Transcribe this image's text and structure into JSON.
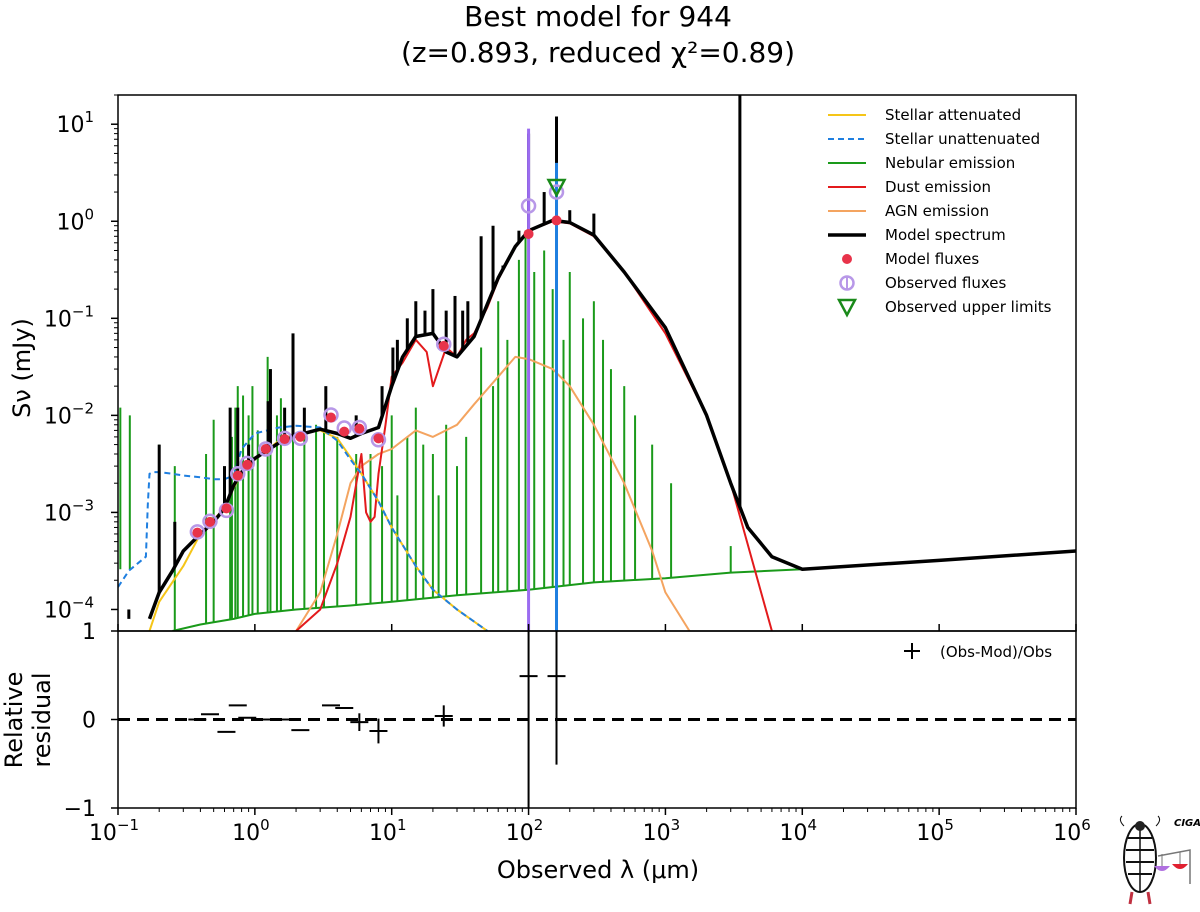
{
  "chart_data": {
    "type": "line",
    "title_line1": "Best model for 944",
    "title_line2": "(z=0.893, reduced χ²=0.89)",
    "xlabel": "Observed λ (μm)",
    "ylabel": "Sν (mJy)",
    "residual_ylabel_line1": "Relative",
    "residual_ylabel_line2": "residual",
    "xscale": "log",
    "yscale": "log",
    "xlim": [
      0.1,
      1000000
    ],
    "ylim": [
      6e-05,
      20
    ],
    "residual_ylim": [
      -1,
      1
    ],
    "x_ticks": [
      {
        "value": 0.1,
        "base": "10",
        "exp": "−1"
      },
      {
        "value": 1,
        "base": "10",
        "exp": "0"
      },
      {
        "value": 10,
        "base": "10",
        "exp": "1"
      },
      {
        "value": 100,
        "base": "10",
        "exp": "2"
      },
      {
        "value": 1000,
        "base": "10",
        "exp": "3"
      },
      {
        "value": 10000,
        "base": "10",
        "exp": "4"
      },
      {
        "value": 100000,
        "base": "10",
        "exp": "5"
      },
      {
        "value": 1000000,
        "base": "10",
        "exp": "6"
      }
    ],
    "y_ticks": [
      {
        "value": 0.0001,
        "base": "10",
        "exp": "−4"
      },
      {
        "value": 0.001,
        "base": "10",
        "exp": "−3"
      },
      {
        "value": 0.01,
        "base": "10",
        "exp": "−2"
      },
      {
        "value": 0.1,
        "base": "10",
        "exp": "−1"
      },
      {
        "value": 1,
        "base": "10",
        "exp": "0"
      },
      {
        "value": 10,
        "base": "10",
        "exp": "1"
      }
    ],
    "residual_ticks": [
      {
        "value": 1,
        "label": "1"
      },
      {
        "value": 0,
        "label": "0"
      },
      {
        "value": -1,
        "label": "−1"
      }
    ],
    "legend_position": "top-right",
    "legend": [
      {
        "key": "stellar_attenuated",
        "label": "Stellar attenuated",
        "color": "#f5c518",
        "style": "solid"
      },
      {
        "key": "stellar_unattenuated",
        "label": "Stellar unattenuated",
        "color": "#1f7fe0",
        "style": "dashed"
      },
      {
        "key": "nebular",
        "label": "Nebular emission",
        "color": "#1a9a1a",
        "style": "solid"
      },
      {
        "key": "dust",
        "label": "Dust emission",
        "color": "#e31a1c",
        "style": "solid"
      },
      {
        "key": "agn",
        "label": "AGN emission",
        "color": "#f4a460",
        "style": "solid"
      },
      {
        "key": "model",
        "label": "Model spectrum",
        "color": "#000000",
        "style": "solid"
      },
      {
        "key": "model_fluxes",
        "label": "Model fluxes",
        "color": "#e8334a",
        "style": "dot"
      },
      {
        "key": "obs_fluxes",
        "label": "Observed fluxes",
        "color": "#b898e8",
        "style": "circle"
      },
      {
        "key": "upper_limits",
        "label": "Observed upper limits",
        "color": "#1a8a1a",
        "style": "triangle"
      }
    ],
    "residual_legend": "(Obs-Mod)/Obs",
    "series": [
      {
        "name": "Stellar unattenuated",
        "key": "stellar_unattenuated",
        "x": [
          0.1,
          0.12,
          0.14,
          0.16,
          0.165,
          0.17,
          0.18,
          0.2,
          0.25,
          0.3,
          0.4,
          0.5,
          0.6,
          0.7,
          0.8,
          1.0,
          1.5,
          2.0,
          3.0,
          4.0,
          5.0,
          6.0,
          8.0,
          10,
          15,
          20,
          30,
          40,
          50
        ],
        "y": [
          0.00017,
          0.00025,
          0.0003,
          0.00035,
          0.0012,
          0.0025,
          0.0026,
          0.0026,
          0.0025,
          0.0024,
          0.0023,
          0.0022,
          0.0022,
          0.0024,
          0.0045,
          0.0065,
          0.0075,
          0.0078,
          0.0075,
          0.0055,
          0.0035,
          0.0025,
          0.0013,
          0.0007,
          0.00028,
          0.00016,
          0.0001,
          7.5e-05,
          6e-05
        ]
      },
      {
        "name": "Stellar attenuated",
        "key": "stellar_attenuated",
        "x": [
          0.17,
          0.2,
          0.3,
          0.4,
          0.5,
          0.6,
          0.7,
          0.8,
          1.0,
          1.5,
          2.0,
          3.0,
          4.0,
          5.0,
          6.0,
          8.0,
          10,
          15,
          20,
          30,
          40,
          50
        ],
        "y": [
          6e-05,
          0.00012,
          0.00028,
          0.0006,
          0.00085,
          0.0011,
          0.0018,
          0.0025,
          0.0035,
          0.0055,
          0.0065,
          0.007,
          0.0058,
          0.0037,
          0.0025,
          0.0013,
          0.0007,
          0.00028,
          0.00016,
          0.0001,
          7.5e-05,
          6e-05
        ]
      },
      {
        "name": "Nebular emission",
        "key": "nebular",
        "x": [
          0.25,
          0.4,
          0.7,
          1,
          2,
          5,
          10,
          30,
          100,
          300,
          1000,
          3000,
          10000
        ],
        "y": [
          6e-05,
          7e-05,
          8e-05,
          9e-05,
          0.0001,
          0.00011,
          0.00012,
          0.00014,
          0.00016,
          0.00019,
          0.00021,
          0.00024,
          0.00026
        ]
      },
      {
        "name": "Dust emission",
        "key": "dust",
        "x": [
          2,
          3,
          4,
          5,
          6,
          6.5,
          7,
          7.5,
          8,
          9,
          10,
          12,
          15,
          18,
          20,
          25,
          30,
          35,
          40,
          50,
          60,
          80,
          100,
          150,
          200,
          300,
          500,
          1000,
          2000,
          3000,
          5000,
          6000
        ],
        "y": [
          6e-05,
          0.0001,
          0.0003,
          0.0009,
          0.004,
          0.001,
          0.0008,
          0.0009,
          0.0025,
          0.008,
          0.025,
          0.035,
          0.06,
          0.045,
          0.02,
          0.05,
          0.04,
          0.06,
          0.07,
          0.13,
          0.25,
          0.55,
          0.8,
          1.0,
          0.95,
          0.7,
          0.3,
          0.07,
          0.01,
          0.002,
          0.00015,
          6e-05
        ]
      },
      {
        "name": "AGN emission",
        "key": "agn",
        "x": [
          2,
          3,
          4,
          5,
          6,
          8,
          10,
          15,
          20,
          30,
          40,
          60,
          80,
          100,
          150,
          200,
          300,
          500,
          800,
          1000,
          1500
        ],
        "y": [
          6e-05,
          0.00015,
          0.0006,
          0.002,
          0.003,
          0.004,
          0.0045,
          0.007,
          0.006,
          0.008,
          0.013,
          0.025,
          0.04,
          0.038,
          0.03,
          0.02,
          0.008,
          0.002,
          0.0004,
          0.00015,
          6e-05
        ]
      },
      {
        "name": "Model spectrum",
        "key": "model",
        "x": [
          0.17,
          0.2,
          0.25,
          0.3,
          0.4,
          0.5,
          0.6,
          0.7,
          0.8,
          1.0,
          1.5,
          2.0,
          3.0,
          4.0,
          5.0,
          6.0,
          8.0,
          10,
          12,
          15,
          20,
          25,
          30,
          40,
          50,
          60,
          80,
          100,
          150,
          200,
          300,
          500,
          1000,
          2000,
          3000,
          4000,
          6000,
          10000,
          100000,
          1000000
        ],
        "y": [
          8e-05,
          0.00015,
          0.00025,
          0.0004,
          0.0006,
          0.0008,
          0.0011,
          0.0019,
          0.0026,
          0.0036,
          0.0052,
          0.0062,
          0.0072,
          0.0065,
          0.0058,
          0.0065,
          0.0075,
          0.02,
          0.04,
          0.065,
          0.07,
          0.045,
          0.04,
          0.065,
          0.14,
          0.26,
          0.55,
          0.8,
          1.02,
          0.97,
          0.72,
          0.3,
          0.08,
          0.01,
          0.002,
          0.0007,
          0.00035,
          0.00026,
          0.00032,
          0.0004
        ]
      },
      {
        "name": "Model fluxes",
        "key": "model_fluxes",
        "x": [
          0.38,
          0.47,
          0.62,
          0.75,
          0.88,
          1.2,
          1.65,
          2.15,
          3.6,
          4.5,
          5.8,
          8.0,
          24,
          100,
          160
        ],
        "y": [
          0.00062,
          0.0008,
          0.0011,
          0.0024,
          0.0031,
          0.0045,
          0.0057,
          0.006,
          0.0095,
          0.0068,
          0.0073,
          0.0058,
          0.052,
          0.74,
          1.02
        ]
      },
      {
        "name": "Observed fluxes",
        "key": "obs_fluxes",
        "x": [
          0.38,
          0.47,
          0.62,
          0.75,
          0.88,
          1.2,
          1.65,
          2.15,
          3.6,
          4.5,
          5.8,
          8.0,
          24,
          100,
          160
        ],
        "y": [
          0.00063,
          0.00081,
          0.00105,
          0.0025,
          0.0032,
          0.0045,
          0.0058,
          0.0058,
          0.0101,
          0.0074,
          0.0075,
          0.0056,
          0.054,
          1.44,
          2.0
        ]
      },
      {
        "name": "Observed upper limits",
        "key": "upper_limits",
        "x": [
          160
        ],
        "y": [
          2.2
        ]
      }
    ],
    "residuals": {
      "x": [
        0.38,
        0.47,
        0.62,
        0.75,
        0.88,
        1.2,
        1.65,
        2.15,
        3.6,
        4.5,
        5.8,
        8.0,
        24,
        100,
        160
      ],
      "y": [
        0.0,
        0.06,
        -0.14,
        0.16,
        0.02,
        0.0,
        0.0,
        -0.12,
        0.16,
        0.13,
        -0.03,
        -0.13,
        0.04,
        0.49,
        0.49
      ],
      "err": [
        0.0,
        0.0,
        0.0,
        0.0,
        0.0,
        0.0,
        0.0,
        0.0,
        0.0,
        0.0,
        0.1,
        0.14,
        0.12,
        1.5,
        1.0
      ]
    }
  }
}
